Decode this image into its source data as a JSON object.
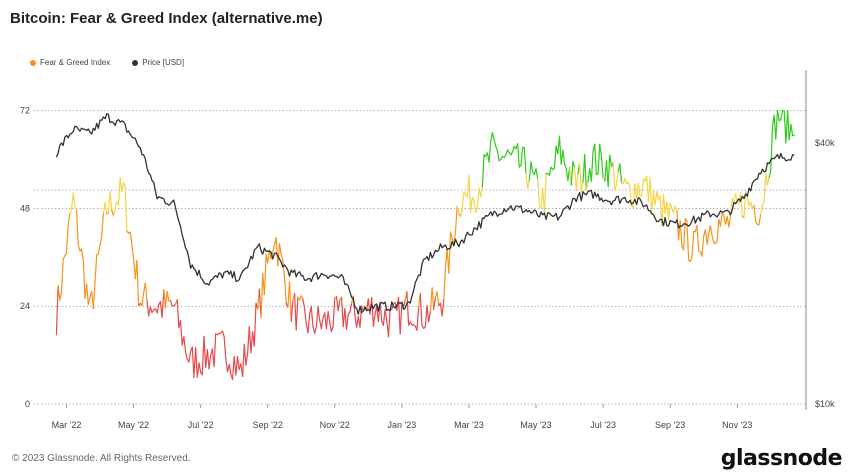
{
  "header": {
    "title": "Bitcoin: Fear & Greed Index (alternative.me)"
  },
  "legend": [
    {
      "label": "Fear & Greed Index",
      "color": "#f7931a"
    },
    {
      "label": "Price [USD]",
      "color": "#333333"
    }
  ],
  "footer": {
    "copyright": "© 2023 Glassnode. All Rights Reserved.",
    "brand": "glassnode"
  },
  "colors": {
    "extreme_fear": "#e5484d",
    "fear": "#f7931a",
    "greed": "#f5d547",
    "extreme_greed": "#2ecc1a",
    "price": "#333333",
    "grid": "#999999"
  },
  "chart_data": {
    "type": "line",
    "title": "Bitcoin: Fear & Greed Index (alternative.me)",
    "x_ticks": [
      "Mar '22",
      "May '22",
      "Jul '22",
      "Sep '22",
      "Nov '22",
      "Jan '23",
      "Mar '23",
      "May '23",
      "Jul '23",
      "Sep '23",
      "Nov '23"
    ],
    "left_axis": {
      "ticks": [
        0,
        24,
        48,
        72
      ],
      "range": [
        0,
        72
      ]
    },
    "right_axis": {
      "ticks": [
        "$10k",
        "$40k"
      ],
      "scale": "log"
    },
    "grid": "horizontal dotted",
    "legend_position": "top-left",
    "series": [
      {
        "name": "Fear & Greed Index",
        "axis": "left",
        "x_month_index": [
          0,
          0.5,
          1,
          1.5,
          2,
          2.5,
          3,
          3.5,
          4,
          4.5,
          5,
          5.5,
          6,
          6.5,
          7,
          7.5,
          8,
          8.5,
          9,
          9.5,
          10,
          10.5,
          11,
          11.5,
          12,
          12.5,
          13,
          13.5,
          14,
          14.5,
          15,
          15.5,
          16,
          16.5,
          17,
          17.5,
          18,
          18.5,
          19,
          19.5,
          20,
          20.5,
          21,
          21.5,
          22
        ],
        "values": [
          22,
          50,
          22,
          48,
          52,
          26,
          24,
          24,
          10,
          12,
          14,
          8,
          22,
          42,
          24,
          20,
          20,
          22,
          22,
          24,
          20,
          24,
          22,
          26,
          50,
          52,
          62,
          60,
          58,
          50,
          62,
          54,
          60,
          58,
          52,
          54,
          48,
          44,
          38,
          44,
          44,
          50,
          48,
          72,
          66
        ]
      },
      {
        "name": "Price [USD]",
        "axis": "right",
        "x_month_index": [
          0,
          0.5,
          1,
          1.5,
          2,
          2.5,
          3,
          3.5,
          4,
          4.5,
          5,
          5.5,
          6,
          6.5,
          7,
          7.5,
          8,
          8.5,
          9,
          9.5,
          10,
          10.5,
          11,
          11.5,
          12,
          12.5,
          13,
          13.5,
          14,
          14.5,
          15,
          15.5,
          16,
          16.5,
          17,
          17.5,
          18,
          18.5,
          19,
          19.5,
          20,
          20.5,
          21,
          21.5,
          22
        ],
        "values": [
          38000,
          43000,
          42000,
          46000,
          44000,
          39000,
          30000,
          29000,
          21000,
          19000,
          20000,
          19500,
          23000,
          22000,
          20000,
          19500,
          20000,
          19500,
          16500,
          16800,
          16800,
          17000,
          21500,
          23000,
          23500,
          25500,
          27500,
          28500,
          28000,
          27000,
          27000,
          30000,
          30500,
          29500,
          29800,
          29000,
          26500,
          26000,
          26500,
          27500,
          27500,
          30000,
          34500,
          37000,
          37500
        ]
      }
    ]
  }
}
